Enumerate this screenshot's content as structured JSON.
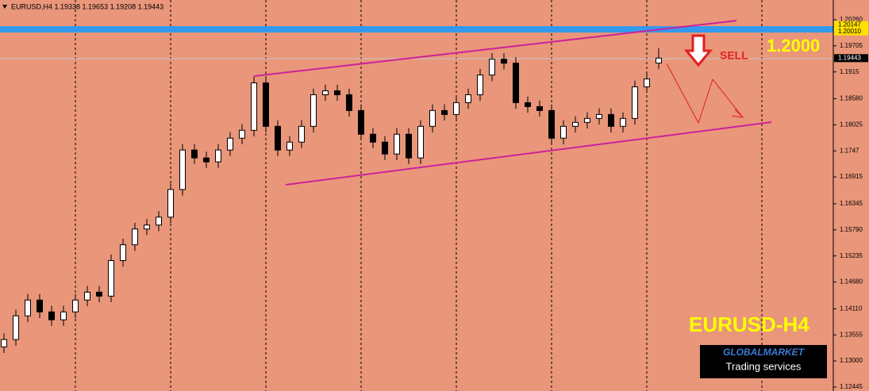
{
  "chart_data": {
    "type": "candlestick",
    "title": "EURUSD,H4  1.19338 1.19653 1.19208 1.19443",
    "open": [
      1.133,
      1.13456,
      1.1396,
      1.14296,
      1.14044,
      1.13876,
      1.14044,
      1.14296,
      1.14464,
      1.1438,
      1.15136,
      1.15472,
      1.15808,
      1.15892,
      1.1606,
      1.16648,
      1.17488,
      1.1732,
      1.17236,
      1.17488,
      1.1774,
      1.17908,
      1.18916,
      1.17992,
      1.17488,
      1.17656,
      1.17992,
      1.18664,
      1.18748,
      1.18664,
      1.18328,
      1.17824,
      1.17656,
      1.17404,
      1.17824,
      1.1732,
      1.17992,
      1.18328,
      1.18244,
      1.18496,
      1.18664,
      1.19084,
      1.1942,
      1.19336,
      1.18496,
      1.18412,
      1.18328,
      1.1774,
      1.17992,
      1.18076,
      1.1816,
      1.18244,
      1.17992,
      1.1816,
      1.18832,
      1.19338
    ],
    "high": [
      1.13586,
      1.1409,
      1.14426,
      1.14426,
      1.14174,
      1.14174,
      1.14426,
      1.14594,
      1.14594,
      1.15266,
      1.15602,
      1.15938,
      1.16022,
      1.1619,
      1.16778,
      1.17618,
      1.17618,
      1.1745,
      1.17618,
      1.1787,
      1.18038,
      1.19046,
      1.19046,
      1.18122,
      1.17786,
      1.18122,
      1.18794,
      1.18878,
      1.18878,
      1.18794,
      1.18458,
      1.17954,
      1.17786,
      1.17954,
      1.17954,
      1.18122,
      1.18458,
      1.18458,
      1.18626,
      1.18794,
      1.19214,
      1.1955,
      1.1955,
      1.19466,
      1.18626,
      1.18542,
      1.18458,
      1.18122,
      1.18206,
      1.1829,
      1.18374,
      1.18374,
      1.1829,
      1.18962,
      1.1913,
      1.19653
    ],
    "low": [
      1.1317,
      1.13326,
      1.1383,
      1.13914,
      1.13746,
      1.13746,
      1.13914,
      1.14166,
      1.1425,
      1.1425,
      1.15006,
      1.15342,
      1.15678,
      1.15762,
      1.1593,
      1.16518,
      1.1719,
      1.17106,
      1.17106,
      1.17358,
      1.1761,
      1.17778,
      1.17862,
      1.17358,
      1.17358,
      1.17526,
      1.17862,
      1.18534,
      1.18534,
      1.18198,
      1.17694,
      1.17526,
      1.17274,
      1.17274,
      1.1719,
      1.1719,
      1.17862,
      1.18114,
      1.18114,
      1.18366,
      1.18534,
      1.18954,
      1.19206,
      1.18366,
      1.18282,
      1.18198,
      1.1761,
      1.1761,
      1.17862,
      1.17946,
      1.1803,
      1.17862,
      1.17862,
      1.1803,
      1.18702,
      1.19208
    ],
    "close": [
      1.13456,
      1.1396,
      1.14296,
      1.14044,
      1.13876,
      1.14044,
      1.14296,
      1.14464,
      1.1438,
      1.15136,
      1.15472,
      1.15808,
      1.15892,
      1.1606,
      1.16648,
      1.17488,
      1.1732,
      1.17236,
      1.17488,
      1.1774,
      1.17908,
      1.18916,
      1.17992,
      1.17488,
      1.17656,
      1.17992,
      1.18664,
      1.18748,
      1.18664,
      1.18328,
      1.17824,
      1.17656,
      1.17404,
      1.17824,
      1.1732,
      1.17992,
      1.18328,
      1.18244,
      1.18496,
      1.18664,
      1.19084,
      1.1942,
      1.19336,
      1.18496,
      1.18412,
      1.18328,
      1.1774,
      1.17992,
      1.18076,
      1.1816,
      1.18244,
      1.17992,
      1.1816,
      1.18832,
      1.19,
      1.19443
    ],
    "up_color": "#ffffff",
    "down_color": "#000000",
    "background": "#e9967a",
    "ylim": [
      1.12361,
      1.2068
    ],
    "yticks": [
      {
        "value": 1.2026,
        "label": "1.20260"
      },
      1.19705,
      1.1915,
      {
        "value": 1.1858,
        "label": "1.18580"
      },
      1.18025,
      1.1747,
      1.16915,
      1.16345,
      {
        "value": 1.1579,
        "label": "1.15790"
      },
      1.15235,
      {
        "value": 1.1468,
        "label": "1.14680"
      },
      {
        "value": 1.1411,
        "label": "1.14110"
      },
      1.13555,
      {
        "value": 1.13,
        "label": "1.13000"
      },
      1.12445
    ],
    "price_labels": [
      1.20147,
      {
        "value": 1.2001,
        "label": "1.20010"
      },
      1.19443
    ],
    "annotations": [
      "SELL",
      "1.2000",
      "EURUSD-H4"
    ],
    "logo": [
      "GLOBALMARKET",
      "Trading services"
    ]
  }
}
